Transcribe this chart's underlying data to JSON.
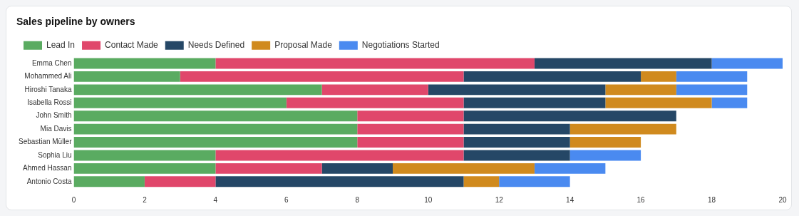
{
  "chart_data": {
    "type": "bar",
    "orientation": "horizontal",
    "stacked": true,
    "title": "Sales pipeline by owners",
    "categories": [
      "Emma Chen",
      "Mohammed Ali",
      "Hiroshi Tanaka",
      "Isabella Rossi",
      "John Smith",
      "Mia Davis",
      "Sebastian Müller",
      "Sophia Liu",
      "Ahmed Hassan",
      "Antonio Costa"
    ],
    "series": [
      {
        "name": "Lead In",
        "color": "#5aab61",
        "values": [
          4,
          3,
          7,
          6,
          8,
          8,
          8,
          4,
          4,
          2
        ]
      },
      {
        "name": "Contact Made",
        "color": "#e0476b",
        "values": [
          9,
          8,
          3,
          5,
          3,
          3,
          3,
          7,
          3,
          2
        ]
      },
      {
        "name": "Needs Defined",
        "color": "#254766",
        "values": [
          5,
          5,
          5,
          4,
          6,
          3,
          3,
          3,
          2,
          7
        ]
      },
      {
        "name": "Proposal Made",
        "color": "#d08a1e",
        "values": [
          0,
          1,
          2,
          3,
          0,
          3,
          2,
          0,
          4,
          1
        ]
      },
      {
        "name": "Negotiations Started",
        "color": "#4a8af0",
        "values": [
          2,
          2,
          2,
          1,
          0,
          0,
          0,
          2,
          2,
          2
        ]
      }
    ],
    "xlim": [
      0,
      20
    ],
    "xticks": [
      0,
      2,
      4,
      6,
      8,
      10,
      12,
      14,
      16,
      18,
      20
    ],
    "grid": false,
    "legend": "top left"
  }
}
